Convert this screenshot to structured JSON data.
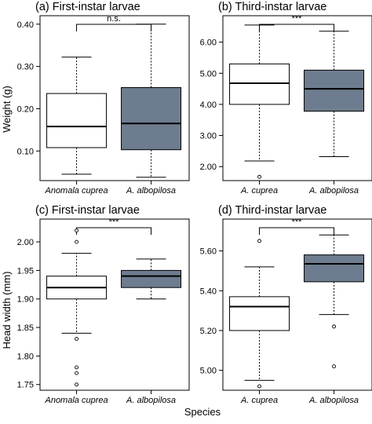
{
  "figure": {
    "shared_ylabel_top": "Weight (g)",
    "shared_ylabel_bottom": "Head width (mm)",
    "shared_xlabel": "Species"
  },
  "colors": {
    "box_white": "#ffffff",
    "box_gray": "#6d7d8f",
    "stroke": "#000000"
  },
  "chart_data": [
    {
      "type": "box",
      "title": "(a) First-instar larvae",
      "categories": [
        "Anomala cuprea",
        "A. albopilosa"
      ],
      "ylabel": "Weight (g)",
      "ylim": [
        0.03,
        0.42
      ],
      "yticks": [
        0.1,
        0.2,
        0.3,
        0.4
      ],
      "ytick_labels": [
        "0.10",
        "0.20",
        "0.30",
        "0.40"
      ],
      "significance": "n.s.",
      "boxes": [
        {
          "name": "Anomala cuprea",
          "fill": "white",
          "whisker_low": 0.045,
          "q1": 0.108,
          "median": 0.158,
          "q3": 0.236,
          "whisker_high": 0.322,
          "outliers": []
        },
        {
          "name": "A. albopilosa",
          "fill": "gray",
          "whisker_low": 0.038,
          "q1": 0.103,
          "median": 0.165,
          "q3": 0.25,
          "whisker_high": 0.4,
          "outliers": []
        }
      ]
    },
    {
      "type": "box",
      "title": "(b) Third-instar larvae",
      "categories": [
        "A. cuprea",
        "A. albopilosa"
      ],
      "ylabel": "",
      "ylim": [
        1.55,
        6.85
      ],
      "yticks": [
        2.0,
        3.0,
        4.0,
        5.0,
        6.0
      ],
      "ytick_labels": [
        "2.00",
        "3.00",
        "4.00",
        "5.00",
        "6.00"
      ],
      "significance": "***",
      "boxes": [
        {
          "name": "A. cuprea",
          "fill": "white",
          "whisker_low": 2.18,
          "q1": 4.0,
          "median": 4.68,
          "q3": 5.3,
          "whisker_high": 6.55,
          "outliers": [
            1.67
          ]
        },
        {
          "name": "A. albopilosa",
          "fill": "gray",
          "whisker_low": 2.32,
          "q1": 3.78,
          "median": 4.5,
          "q3": 5.1,
          "whisker_high": 6.35,
          "outliers": []
        }
      ]
    },
    {
      "type": "box",
      "title": "(c) First-instar larvae",
      "categories": [
        "Anomala cuprea",
        "A. albopilosa"
      ],
      "ylabel": "Head width (mm)",
      "ylim": [
        1.74,
        2.04
      ],
      "yticks": [
        1.75,
        1.8,
        1.85,
        1.9,
        1.95,
        2.0
      ],
      "ytick_labels": [
        "1.75",
        "1.80",
        "1.85",
        "1.90",
        "1.95",
        "2.00"
      ],
      "significance": "***",
      "boxes": [
        {
          "name": "Anomala cuprea",
          "fill": "white",
          "whisker_low": 1.84,
          "q1": 1.9,
          "median": 1.92,
          "q3": 1.94,
          "whisker_high": 1.98,
          "outliers": [
            2.02,
            2.0,
            1.83,
            1.78,
            1.77,
            1.75
          ]
        },
        {
          "name": "A. albopilosa",
          "fill": "gray",
          "whisker_low": 1.9,
          "q1": 1.92,
          "median": 1.94,
          "q3": 1.95,
          "whisker_high": 1.97,
          "outliers": []
        }
      ]
    },
    {
      "type": "box",
      "title": "(d) Third-instar larvae",
      "categories": [
        "A. cuprea",
        "A. albopilosa"
      ],
      "ylabel": "",
      "ylim": [
        4.9,
        5.76
      ],
      "yticks": [
        5.0,
        5.2,
        5.4,
        5.6
      ],
      "ytick_labels": [
        "5.00",
        "5.20",
        "5.40",
        "5.60"
      ],
      "significance": "***",
      "boxes": [
        {
          "name": "A. cuprea",
          "fill": "white",
          "whisker_low": 4.95,
          "q1": 5.2,
          "median": 5.32,
          "q3": 5.37,
          "whisker_high": 5.52,
          "outliers": [
            5.65,
            4.92
          ]
        },
        {
          "name": "A. albopilosa",
          "fill": "gray",
          "whisker_low": 5.28,
          "q1": 5.445,
          "median": 5.535,
          "q3": 5.58,
          "whisker_high": 5.68,
          "outliers": [
            5.22,
            5.02
          ]
        }
      ]
    }
  ]
}
